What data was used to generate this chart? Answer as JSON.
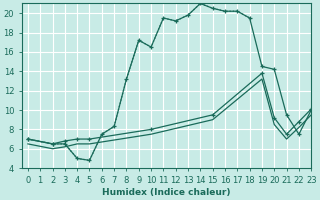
{
  "bg_color": "#c8ebe6",
  "grid_color": "#ffffff",
  "line_color": "#1a6b5a",
  "xlabel": "Humidex (Indice chaleur)",
  "xlim": [
    -0.5,
    23
  ],
  "ylim": [
    4,
    21
  ],
  "xticks": [
    0,
    1,
    2,
    3,
    4,
    5,
    6,
    7,
    8,
    9,
    10,
    11,
    12,
    13,
    14,
    15,
    16,
    17,
    18,
    19,
    20,
    21,
    22,
    23
  ],
  "yticks": [
    4,
    6,
    8,
    10,
    12,
    14,
    16,
    18,
    20
  ],
  "series": [
    {
      "x": [
        0,
        2,
        3,
        4,
        5,
        6,
        7,
        8,
        9,
        10,
        11,
        12,
        13,
        14,
        15,
        16,
        17,
        18,
        19,
        20,
        21,
        22,
        23
      ],
      "y": [
        7,
        6.5,
        6.5,
        5,
        4.8,
        7.5,
        8.3,
        13.2,
        17.2,
        16.5,
        19.5,
        19.2,
        19.8,
        21.0,
        20.5,
        20.2,
        20.2,
        19.5,
        14.5,
        14.2,
        9.5,
        7.5,
        10.0
      ],
      "style": "-",
      "marker": "+"
    },
    {
      "x": [
        0,
        2,
        3,
        4,
        5,
        6,
        7,
        8,
        9,
        10,
        11,
        12,
        13,
        14,
        15,
        16,
        17,
        18
      ],
      "y": [
        7,
        6.5,
        6.5,
        5,
        4.8,
        7.5,
        8.3,
        13.2,
        17.2,
        16.5,
        19.5,
        19.2,
        19.8,
        21.0,
        20.5,
        20.2,
        20.2,
        19.5
      ],
      "style": ":",
      "marker": null
    },
    {
      "x": [
        0,
        2,
        3,
        4,
        5,
        10,
        15,
        19,
        20,
        21,
        22,
        23
      ],
      "y": [
        7.0,
        6.5,
        6.8,
        7.0,
        7.0,
        8.0,
        9.5,
        13.8,
        9.2,
        7.5,
        8.8,
        10.1
      ],
      "style": "-",
      "marker": "+"
    },
    {
      "x": [
        0,
        2,
        3,
        4,
        5,
        10,
        15,
        19,
        20,
        21,
        22,
        23
      ],
      "y": [
        6.5,
        6.0,
        6.2,
        6.5,
        6.5,
        7.5,
        9.0,
        13.2,
        8.5,
        7.0,
        8.2,
        9.5
      ],
      "style": "-",
      "marker": null
    }
  ]
}
